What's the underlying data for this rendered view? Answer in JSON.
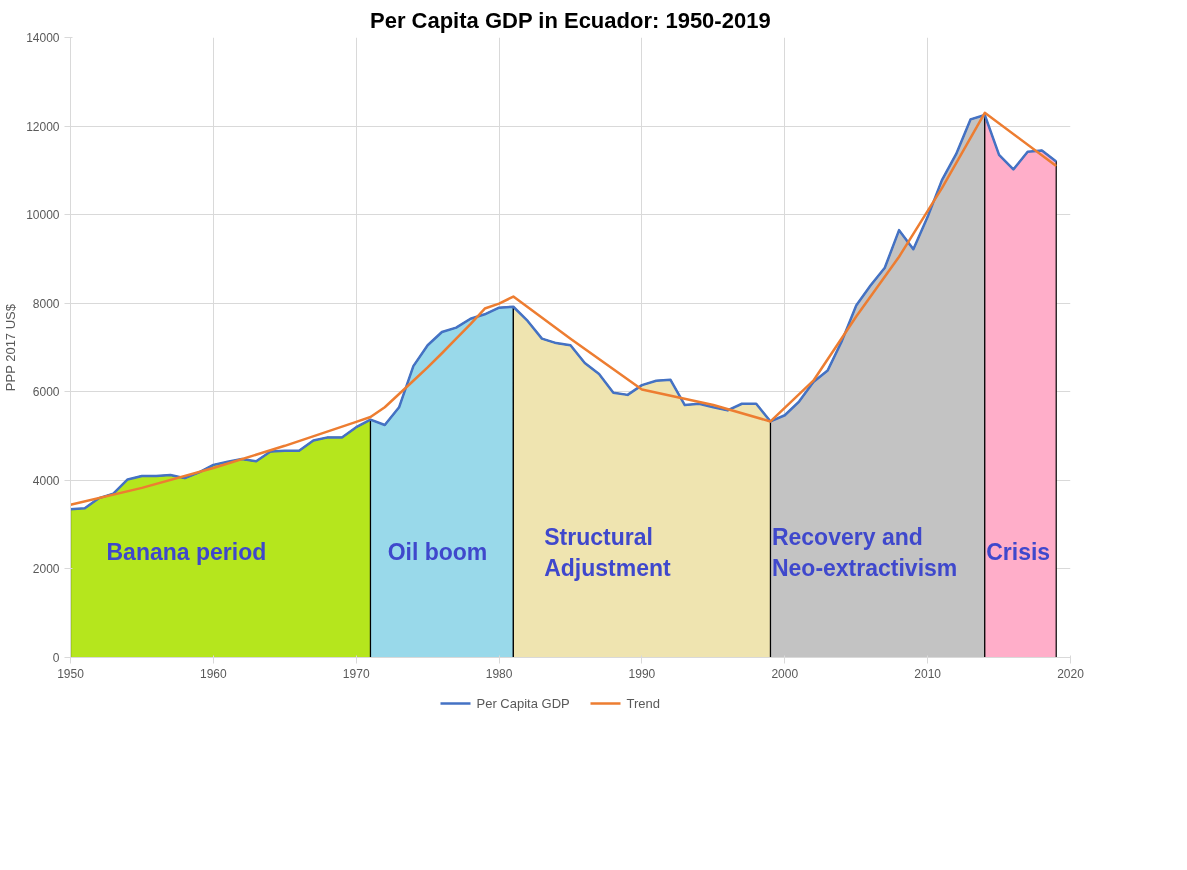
{
  "chart_data": {
    "type": "area",
    "title": "Per Capita GDP in Ecuador: 1950-2019",
    "ylabel": "PPP 2017 US$",
    "xlim": [
      1950,
      2020
    ],
    "xticks": [
      1950,
      1960,
      1970,
      1980,
      1990,
      2000,
      2010,
      2020
    ],
    "ylim": [
      0,
      14000
    ],
    "yticks": [
      0,
      2000,
      4000,
      6000,
      8000,
      10000,
      12000,
      14000
    ],
    "grid": true,
    "legend": "bottom",
    "series": [
      {
        "color": "#b5e61d",
        "x": [
          1950,
          1951,
          1952,
          1953,
          1954,
          1955,
          1956,
          1957,
          1958,
          1959,
          1960,
          1961,
          1962,
          1963,
          1964,
          1965,
          1966,
          1967,
          1968,
          1969,
          1970,
          1971
        ],
        "values": [
          3350,
          3370,
          3600,
          3700,
          4020,
          4100,
          4100,
          4120,
          4050,
          4180,
          4350,
          4420,
          4480,
          4430,
          4650,
          4670,
          4670,
          4900,
          4970,
          4970,
          5200,
          5370
        ]
      },
      {
        "color": "#99d9ea",
        "x": [
          1971,
          1972,
          1973,
          1974,
          1975,
          1976,
          1977,
          1978,
          1979,
          1980,
          1981
        ],
        "values": [
          5370,
          5250,
          5650,
          6580,
          7050,
          7350,
          7450,
          7650,
          7750,
          7900,
          7920
        ]
      },
      {
        "color": "#efe4b0",
        "x": [
          1981,
          1982,
          1983,
          1984,
          1985,
          1986,
          1987,
          1988,
          1989,
          1990,
          1991,
          1992,
          1993,
          1994,
          1995,
          1996,
          1997,
          1998,
          1999
        ],
        "values": [
          7920,
          7600,
          7200,
          7100,
          7050,
          6650,
          6400,
          5980,
          5930,
          6150,
          6250,
          6270,
          5700,
          5730,
          5650,
          5580,
          5730,
          5730,
          5330
        ]
      },
      {
        "color": "#c3c3c3",
        "x": [
          1999,
          2000,
          2001,
          2002,
          2003,
          2004,
          2005,
          2006,
          2007,
          2008,
          2009,
          2010,
          2011,
          2012,
          2013,
          2014
        ],
        "values": [
          5330,
          5470,
          5780,
          6220,
          6480,
          7150,
          7950,
          8400,
          8800,
          9650,
          9220,
          9950,
          10780,
          11370,
          12150,
          12250
        ]
      },
      {
        "color": "#ffaec9",
        "x": [
          2014,
          2015,
          2016,
          2017,
          2018,
          2019
        ],
        "values": [
          12250,
          11350,
          11020,
          11420,
          11450,
          11200
        ]
      },
      {
        "type": "line",
        "name": "Per Capita GDP",
        "color": "#4472c4",
        "x": [
          1950,
          1951,
          1952,
          1953,
          1954,
          1955,
          1956,
          1957,
          1958,
          1959,
          1960,
          1961,
          1962,
          1963,
          1964,
          1965,
          1966,
          1967,
          1968,
          1969,
          1970,
          1971,
          1972,
          1973,
          1974,
          1975,
          1976,
          1977,
          1978,
          1979,
          1980,
          1981,
          1982,
          1983,
          1984,
          1985,
          1986,
          1987,
          1988,
          1989,
          1990,
          1991,
          1992,
          1993,
          1994,
          1995,
          1996,
          1997,
          1998,
          1999,
          2000,
          2001,
          2002,
          2003,
          2004,
          2005,
          2006,
          2007,
          2008,
          2009,
          2010,
          2011,
          2012,
          2013,
          2014,
          2015,
          2016,
          2017,
          2018,
          2019
        ],
        "values": [
          3350,
          3370,
          3600,
          3700,
          4020,
          4100,
          4100,
          4120,
          4050,
          4180,
          4350,
          4420,
          4480,
          4430,
          4650,
          4670,
          4670,
          4900,
          4970,
          4970,
          5200,
          5370,
          5250,
          5650,
          6580,
          7050,
          7350,
          7450,
          7650,
          7750,
          7900,
          7920,
          7600,
          7200,
          7100,
          7050,
          6650,
          6400,
          5980,
          5930,
          6150,
          6250,
          6270,
          5700,
          5730,
          5650,
          5580,
          5730,
          5730,
          5330,
          5470,
          5780,
          6220,
          6480,
          7150,
          7950,
          8400,
          8800,
          9650,
          9220,
          9950,
          10780,
          11370,
          12150,
          12250,
          11350,
          11020,
          11420,
          11450,
          11200
        ]
      },
      {
        "type": "line",
        "name": "Trend",
        "color": "#ed7d31",
        "x": [
          1950,
          1955,
          1960,
          1965,
          1970,
          1971,
          1972,
          1973,
          1974,
          1975,
          1976,
          1977,
          1978,
          1979,
          1980,
          1981,
          1985,
          1990,
          1995,
          1999,
          2002,
          2005,
          2008,
          2011,
          2014,
          2019
        ],
        "values": [
          3450,
          3830,
          4280,
          4780,
          5320,
          5430,
          5650,
          5950,
          6250,
          6550,
          6870,
          7200,
          7530,
          7880,
          7990,
          8150,
          7200,
          6050,
          5700,
          5330,
          6250,
          7700,
          9050,
          10600,
          12300,
          11100
        ]
      }
    ],
    "annotations": [
      "Banana period",
      "Oil boom",
      "Structural\nAdjustment",
      "Recovery and\nNeo-extractivism",
      "Crisis"
    ]
  }
}
